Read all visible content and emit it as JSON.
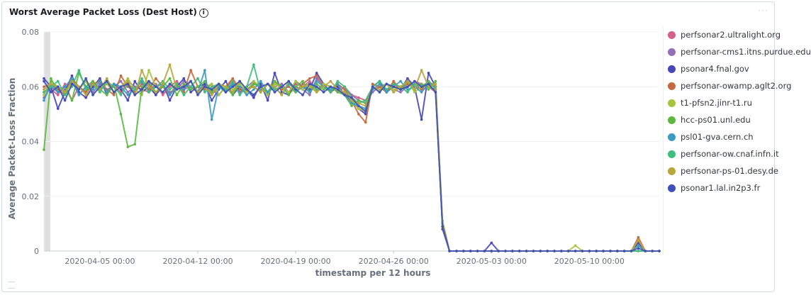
{
  "panel": {
    "title": "Worst Average Packet Loss (Dest Host)",
    "info_icon": "info-icon",
    "menu_icon": "ellipsis-icon"
  },
  "chart_data": {
    "type": "line",
    "title": "Worst Average Packet Loss (Dest Host)",
    "xlabel": "timestamp per 12 hours",
    "ylabel": "Average Packet-Loss Fraction",
    "ylim": [
      0,
      0.08
    ],
    "y_ticks": [
      "0",
      "0.02",
      "0.04",
      "0.06",
      "0.08"
    ],
    "x_ticks": [
      "2020-04-05 00:00",
      "2020-04-12 00:00",
      "2020-04-19 00:00",
      "2020-04-26 00:00",
      "2020-05-03 00:00",
      "2020-05-10 00:00"
    ],
    "x_tick_values": [
      8,
      22,
      36,
      50,
      64,
      78
    ],
    "x_range": [
      0,
      88
    ],
    "grid": true,
    "legend_position": "right",
    "series": [
      {
        "name": "perfsonar2.ultralight.org",
        "color": "#d36086",
        "values": [
          0.058,
          0.059,
          0.057,
          0.061,
          0.055,
          0.06,
          0.058,
          0.062,
          0.059,
          0.061,
          0.06,
          0.058,
          0.062,
          0.06,
          0.059,
          0.058,
          0.061,
          0.057,
          0.06,
          0.062,
          0.059,
          0.06,
          0.058,
          0.061,
          0.059,
          0.057,
          0.06,
          0.062,
          0.058,
          0.059,
          0.06,
          0.058,
          0.061,
          0.059,
          0.06,
          0.058,
          0.061,
          0.06,
          0.062,
          0.059,
          0.061,
          0.06,
          0.058,
          0.06,
          0.057,
          0.056,
          0.055,
          0.059,
          0.06,
          0.058,
          0.061,
          0.059,
          0.06,
          0.062,
          0.061,
          0.06,
          0.058,
          0.01,
          0.0,
          0.0,
          0.0,
          0.0,
          0.0,
          0.0,
          0.0,
          0.0,
          0.0,
          0.0,
          0.0,
          0.0,
          0.0,
          0.0,
          0.0,
          0.0,
          0.0,
          0.0,
          0.0,
          0.0,
          0.0,
          0.0,
          0.0,
          0.0,
          0.0,
          0.0,
          0.0,
          0.002,
          0.0,
          0.0,
          0.0
        ]
      },
      {
        "name": "perfsonar-cms1.itns.purdue.edu",
        "color": "#9170b8",
        "values": [
          0.056,
          0.06,
          0.058,
          0.059,
          0.062,
          0.057,
          0.06,
          0.058,
          0.061,
          0.059,
          0.06,
          0.062,
          0.058,
          0.06,
          0.059,
          0.061,
          0.057,
          0.06,
          0.058,
          0.059,
          0.062,
          0.06,
          0.058,
          0.061,
          0.057,
          0.06,
          0.059,
          0.061,
          0.058,
          0.06,
          0.062,
          0.059,
          0.058,
          0.06,
          0.061,
          0.058,
          0.06,
          0.059,
          0.057,
          0.063,
          0.06,
          0.058,
          0.061,
          0.059,
          0.057,
          0.055,
          0.054,
          0.058,
          0.06,
          0.061,
          0.059,
          0.058,
          0.06,
          0.061,
          0.059,
          0.06,
          0.059,
          0.009,
          0.0,
          0.0,
          0.0,
          0.0,
          0.0,
          0.0,
          0.0,
          0.0,
          0.0,
          0.0,
          0.0,
          0.0,
          0.0,
          0.0,
          0.0,
          0.0,
          0.0,
          0.0,
          0.0,
          0.0,
          0.0,
          0.0,
          0.0,
          0.0,
          0.0,
          0.0,
          0.0,
          0.003,
          0.0,
          0.0,
          0.0
        ]
      },
      {
        "name": "psonar4.fnal.gov",
        "color": "#4747b8",
        "values": [
          0.063,
          0.06,
          0.052,
          0.058,
          0.064,
          0.058,
          0.056,
          0.06,
          0.063,
          0.057,
          0.061,
          0.059,
          0.055,
          0.062,
          0.058,
          0.06,
          0.057,
          0.061,
          0.055,
          0.06,
          0.063,
          0.058,
          0.06,
          0.061,
          0.055,
          0.059,
          0.062,
          0.057,
          0.06,
          0.059,
          0.056,
          0.061,
          0.055,
          0.065,
          0.058,
          0.057,
          0.062,
          0.06,
          0.059,
          0.065,
          0.061,
          0.058,
          0.06,
          0.057,
          0.055,
          0.052,
          0.05,
          0.06,
          0.062,
          0.058,
          0.06,
          0.059,
          0.063,
          0.06,
          0.048,
          0.065,
          0.06,
          0.008,
          0.0,
          0.0,
          0.0,
          0.0,
          0.0,
          0.0,
          0.003,
          0.0,
          0.0,
          0.0,
          0.0,
          0.0,
          0.0,
          0.0,
          0.0,
          0.0,
          0.0,
          0.0,
          0.0,
          0.0,
          0.0,
          0.0,
          0.0,
          0.0,
          0.0,
          0.0,
          0.0,
          0.003,
          0.0,
          0.0,
          0.0
        ]
      },
      {
        "name": "perfsonar-owamp.aglt2.org",
        "color": "#c5693f",
        "values": [
          0.06,
          0.061,
          0.059,
          0.057,
          0.063,
          0.06,
          0.058,
          0.061,
          0.062,
          0.059,
          0.057,
          0.064,
          0.06,
          0.058,
          0.061,
          0.059,
          0.063,
          0.06,
          0.057,
          0.061,
          0.058,
          0.066,
          0.06,
          0.059,
          0.061,
          0.057,
          0.06,
          0.063,
          0.059,
          0.058,
          0.061,
          0.06,
          0.057,
          0.062,
          0.059,
          0.06,
          0.058,
          0.061,
          0.063,
          0.064,
          0.06,
          0.058,
          0.061,
          0.059,
          0.055,
          0.05,
          0.047,
          0.061,
          0.06,
          0.058,
          0.062,
          0.059,
          0.061,
          0.06,
          0.059,
          0.062,
          0.06,
          0.009,
          0.0,
          0.0,
          0.0,
          0.0,
          0.0,
          0.0,
          0.0,
          0.0,
          0.0,
          0.0,
          0.0,
          0.0,
          0.0,
          0.0,
          0.0,
          0.0,
          0.0,
          0.0,
          0.0,
          0.0,
          0.0,
          0.0,
          0.0,
          0.0,
          0.0,
          0.0,
          0.0,
          0.005,
          0.0,
          0.0,
          0.0
        ]
      },
      {
        "name": "t1-pfsn2.jinr-t1.ru",
        "color": "#a8c43f",
        "values": [
          0.057,
          0.062,
          0.06,
          0.058,
          0.061,
          0.059,
          0.062,
          0.057,
          0.06,
          0.061,
          0.058,
          0.06,
          0.063,
          0.059,
          0.057,
          0.066,
          0.06,
          0.058,
          0.061,
          0.059,
          0.06,
          0.062,
          0.058,
          0.06,
          0.061,
          0.057,
          0.06,
          0.059,
          0.061,
          0.058,
          0.062,
          0.06,
          0.057,
          0.061,
          0.06,
          0.058,
          0.062,
          0.059,
          0.06,
          0.058,
          0.061,
          0.06,
          0.059,
          0.058,
          0.055,
          0.052,
          0.051,
          0.06,
          0.058,
          0.061,
          0.059,
          0.06,
          0.062,
          0.058,
          0.06,
          0.061,
          0.06,
          0.01,
          0.0,
          0.0,
          0.0,
          0.0,
          0.0,
          0.0,
          0.0,
          0.0,
          0.0,
          0.0,
          0.0,
          0.0,
          0.0,
          0.0,
          0.0,
          0.0,
          0.0,
          0.0,
          0.002,
          0.0,
          0.0,
          0.0,
          0.0,
          0.0,
          0.0,
          0.0,
          0.0,
          0.002,
          0.0,
          0.0,
          0.0
        ]
      },
      {
        "name": "hcc-ps01.unl.edu",
        "color": "#5cb840",
        "values": [
          0.037,
          0.063,
          0.058,
          0.06,
          0.055,
          0.065,
          0.06,
          0.062,
          0.059,
          0.057,
          0.061,
          0.05,
          0.038,
          0.039,
          0.06,
          0.062,
          0.058,
          0.06,
          0.063,
          0.057,
          0.061,
          0.059,
          0.06,
          0.062,
          0.058,
          0.061,
          0.06,
          0.057,
          0.062,
          0.059,
          0.061,
          0.06,
          0.058,
          0.062,
          0.06,
          0.057,
          0.06,
          0.062,
          0.058,
          0.061,
          0.059,
          0.06,
          0.058,
          0.057,
          0.053,
          0.055,
          0.054,
          0.06,
          0.058,
          0.061,
          0.06,
          0.059,
          0.062,
          0.06,
          0.061,
          0.059,
          0.062,
          0.009,
          0.0,
          0.0,
          0.0,
          0.0,
          0.0,
          0.0,
          0.0,
          0.0,
          0.0,
          0.0,
          0.0,
          0.0,
          0.0,
          0.0,
          0.0,
          0.0,
          0.0,
          0.0,
          0.0,
          0.0,
          0.0,
          0.0,
          0.0,
          0.0,
          0.0,
          0.0,
          0.0,
          0.0,
          0.0,
          0.0,
          0.0
        ]
      },
      {
        "name": "psl01-gva.cern.ch",
        "color": "#3b9bc1",
        "values": [
          0.055,
          0.061,
          0.058,
          0.06,
          0.063,
          0.057,
          0.06,
          0.059,
          0.062,
          0.058,
          0.061,
          0.06,
          0.057,
          0.059,
          0.062,
          0.058,
          0.06,
          0.061,
          0.057,
          0.06,
          0.059,
          0.062,
          0.058,
          0.066,
          0.048,
          0.06,
          0.058,
          0.061,
          0.06,
          0.057,
          0.059,
          0.062,
          0.058,
          0.06,
          0.057,
          0.061,
          0.059,
          0.06,
          0.058,
          0.062,
          0.06,
          0.059,
          0.061,
          0.057,
          0.054,
          0.053,
          0.052,
          0.059,
          0.061,
          0.058,
          0.06,
          0.062,
          0.059,
          0.06,
          0.058,
          0.061,
          0.06,
          0.009,
          0.0,
          0.0,
          0.0,
          0.0,
          0.0,
          0.0,
          0.0,
          0.0,
          0.0,
          0.0,
          0.0,
          0.0,
          0.0,
          0.0,
          0.0,
          0.0,
          0.0,
          0.0,
          0.0,
          0.0,
          0.0,
          0.0,
          0.0,
          0.0,
          0.0,
          0.0,
          0.0,
          0.002,
          0.0,
          0.0,
          0.0
        ]
      },
      {
        "name": "perfsonar-ow.cnaf.infn.it",
        "color": "#3fbd7c",
        "values": [
          0.058,
          0.06,
          0.062,
          0.057,
          0.06,
          0.066,
          0.059,
          0.061,
          0.058,
          0.062,
          0.06,
          0.057,
          0.061,
          0.059,
          0.063,
          0.058,
          0.06,
          0.062,
          0.059,
          0.061,
          0.057,
          0.06,
          0.063,
          0.058,
          0.06,
          0.061,
          0.059,
          0.062,
          0.057,
          0.06,
          0.068,
          0.058,
          0.061,
          0.059,
          0.06,
          0.062,
          0.058,
          0.06,
          0.061,
          0.059,
          0.06,
          0.058,
          0.062,
          0.06,
          0.056,
          0.054,
          0.055,
          0.06,
          0.062,
          0.059,
          0.061,
          0.06,
          0.058,
          0.061,
          0.06,
          0.062,
          0.059,
          0.01,
          0.0,
          0.0,
          0.0,
          0.0,
          0.0,
          0.0,
          0.0,
          0.0,
          0.0,
          0.0,
          0.0,
          0.0,
          0.0,
          0.0,
          0.0,
          0.0,
          0.0,
          0.0,
          0.0,
          0.0,
          0.0,
          0.0,
          0.0,
          0.0,
          0.0,
          0.0,
          0.0,
          0.0,
          0.0,
          0.0,
          0.0
        ]
      },
      {
        "name": "perfsonar-ps-01.desy.de",
        "color": "#b8a53c",
        "values": [
          0.059,
          0.061,
          0.06,
          0.058,
          0.062,
          0.06,
          0.057,
          0.061,
          0.059,
          0.063,
          0.058,
          0.06,
          0.062,
          0.057,
          0.066,
          0.06,
          0.058,
          0.061,
          0.068,
          0.059,
          0.06,
          0.062,
          0.058,
          0.06,
          0.057,
          0.061,
          0.06,
          0.058,
          0.062,
          0.059,
          0.06,
          0.058,
          0.061,
          0.06,
          0.057,
          0.062,
          0.059,
          0.06,
          0.061,
          0.058,
          0.06,
          0.062,
          0.059,
          0.058,
          0.055,
          0.054,
          0.053,
          0.06,
          0.059,
          0.061,
          0.058,
          0.06,
          0.062,
          0.059,
          0.066,
          0.06,
          0.061,
          0.011,
          0.0,
          0.0,
          0.0,
          0.0,
          0.0,
          0.0,
          0.0,
          0.0,
          0.0,
          0.0,
          0.0,
          0.0,
          0.0,
          0.0,
          0.0,
          0.0,
          0.0,
          0.0,
          0.0,
          0.0,
          0.0,
          0.0,
          0.0,
          0.0,
          0.0,
          0.0,
          0.0,
          0.004,
          0.0,
          0.0,
          0.0
        ]
      },
      {
        "name": "psonar1.lal.in2p3.fr",
        "color": "#3f51b8",
        "values": [
          0.062,
          0.058,
          0.06,
          0.055,
          0.061,
          0.059,
          0.063,
          0.057,
          0.06,
          0.062,
          0.058,
          0.06,
          0.061,
          0.057,
          0.059,
          0.062,
          0.06,
          0.058,
          0.061,
          0.059,
          0.06,
          0.062,
          0.057,
          0.06,
          0.059,
          0.061,
          0.058,
          0.06,
          0.062,
          0.059,
          0.057,
          0.06,
          0.061,
          0.058,
          0.06,
          0.062,
          0.059,
          0.057,
          0.061,
          0.06,
          0.058,
          0.06,
          0.059,
          0.057,
          0.056,
          0.053,
          0.051,
          0.06,
          0.058,
          0.061,
          0.06,
          0.059,
          0.06,
          0.062,
          0.06,
          0.061,
          0.058,
          0.009,
          0.0,
          0.0,
          0.0,
          0.0,
          0.0,
          0.0,
          0.0,
          0.0,
          0.0,
          0.0,
          0.0,
          0.0,
          0.0,
          0.0,
          0.0,
          0.0,
          0.0,
          0.0,
          0.0,
          0.0,
          0.0,
          0.0,
          0.0,
          0.0,
          0.0,
          0.0,
          0.0,
          0.001,
          0.0,
          0.0,
          0.0
        ]
      }
    ]
  }
}
